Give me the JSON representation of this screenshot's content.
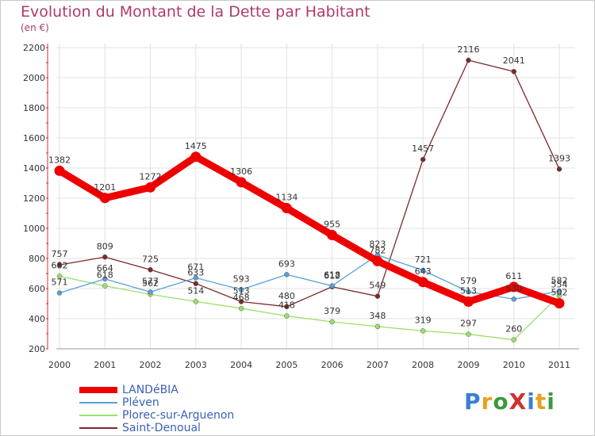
{
  "title": "Evolution du Montant de la Dette par Habitant",
  "unit": "(en €)",
  "logo": "ProXiti",
  "colors": {
    "LANDéBIA": "#ee0000",
    "Pléven": "#5aa0d8",
    "Plorec-sur-Arguenon": "#9be06a",
    "Saint-Denoual": "#7a2a2a",
    "grid": "#e2e2e2",
    "title": "#b03a6a"
  },
  "chart_data": {
    "type": "line",
    "title": "Evolution du Montant de la Dette par Habitant",
    "ylabel": "(en €)",
    "xlabel": "",
    "ylim": [
      200,
      2200
    ],
    "yticks": [
      200,
      400,
      600,
      800,
      1000,
      1200,
      1400,
      1600,
      1800,
      2000,
      2200
    ],
    "categories": [
      "2000",
      "2001",
      "2002",
      "2003",
      "2004",
      "2005",
      "2006",
      "2007",
      "2008",
      "2009",
      "2010",
      "2011"
    ],
    "series": [
      {
        "name": "LANDéBIA",
        "values": [
          1382,
          1201,
          1272,
          1475,
          1306,
          1134,
          955,
          782,
          643,
          513,
          611,
          502
        ]
      },
      {
        "name": "Pléven",
        "values": [
          571,
          664,
          577,
          671,
          593,
          693,
          618,
          823,
          721,
          579,
          530,
          582
        ]
      },
      {
        "name": "Plorec-sur-Arguenon",
        "values": [
          682,
          618,
          562,
          514,
          468,
          418,
          379,
          348,
          319,
          297,
          260,
          554
        ]
      },
      {
        "name": "Saint-Denoual",
        "values": [
          757,
          809,
          725,
          633,
          513,
          480,
          612,
          549,
          1457,
          2116,
          2041,
          1393
        ]
      }
    ]
  }
}
